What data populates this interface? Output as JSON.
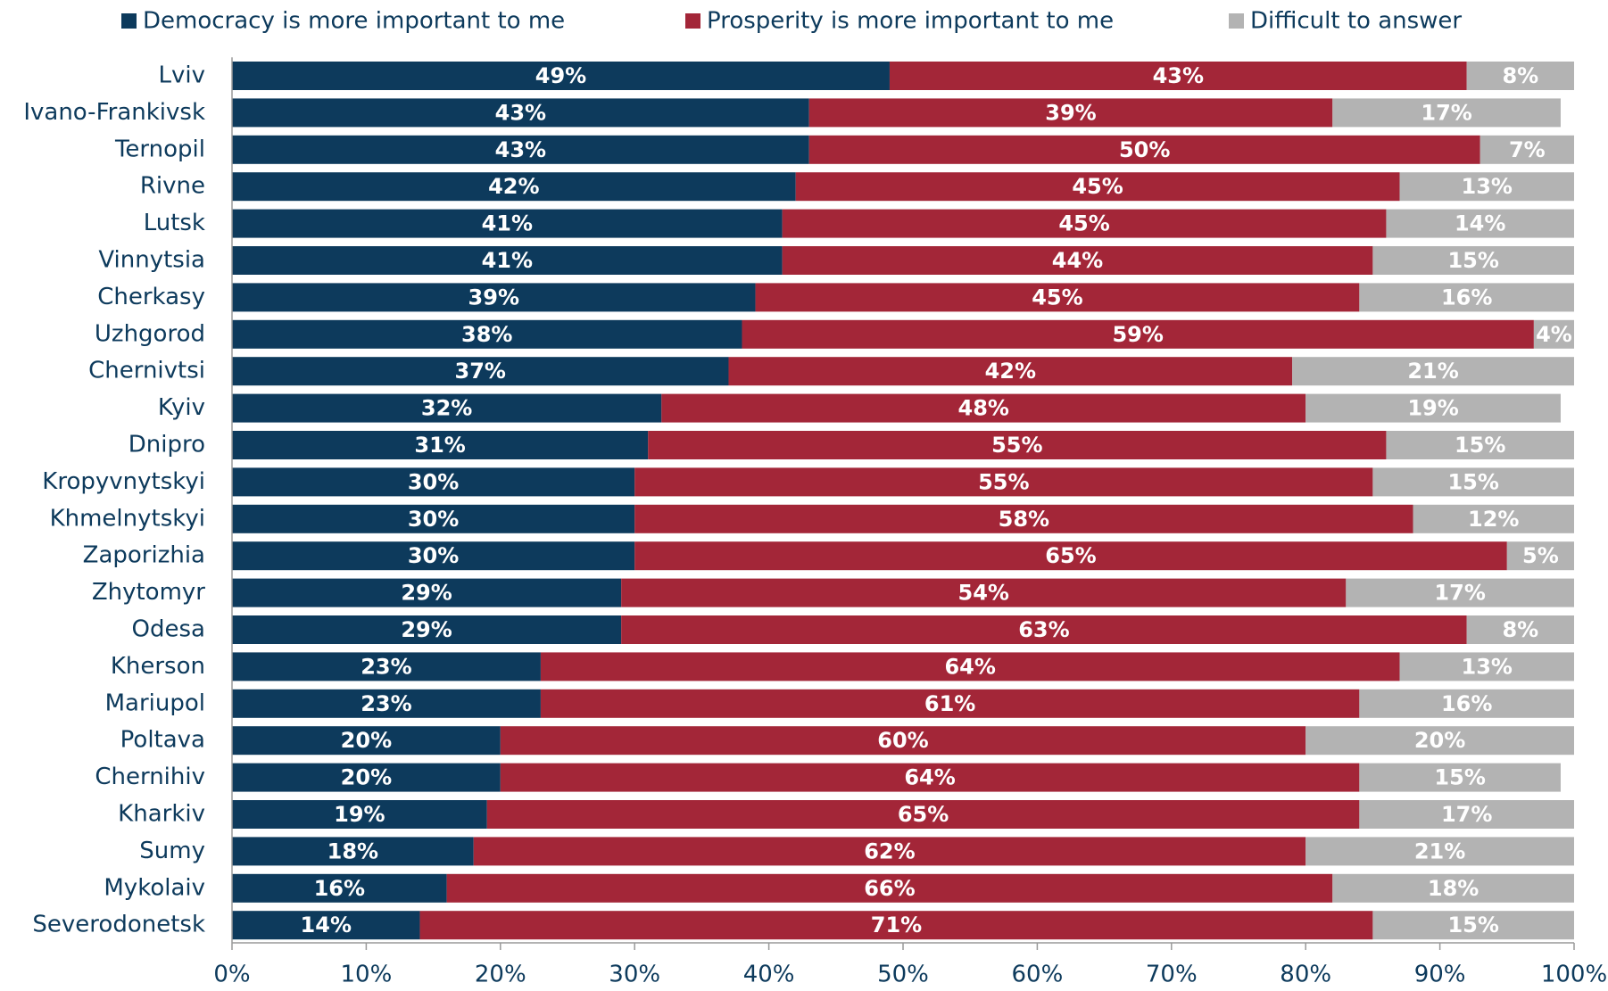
{
  "chart_data": {
    "type": "stacked-bar-horizontal",
    "categories": [
      "Lviv",
      "Ivano-Frankivsk",
      "Ternopil",
      "Rivne",
      "Lutsk",
      "Vinnytsia",
      "Cherkasy",
      "Uzhgorod",
      "Chernivtsi",
      "Kyiv",
      "Dnipro",
      "Kropyvnytskyi",
      "Khmelnytskyi",
      "Zaporizhia",
      "Zhytomyr",
      "Odesa",
      "Kherson",
      "Mariupol",
      "Poltava",
      "Chernihiv",
      "Kharkiv",
      "Sumy",
      "Mykolaiv",
      "Severodonetsk"
    ],
    "series": [
      {
        "name": "Democracy is more important to me",
        "color": "#0d3a5c",
        "values": [
          49,
          43,
          43,
          42,
          41,
          41,
          39,
          38,
          37,
          32,
          31,
          30,
          30,
          30,
          29,
          29,
          23,
          23,
          20,
          20,
          19,
          18,
          16,
          14
        ],
        "value_labels": [
          "49%",
          "43%",
          "43%",
          "42%",
          "41%",
          "41%",
          "39%",
          "38%",
          "37%",
          "32%",
          "31%",
          "30%",
          "30%",
          "30%",
          "29%",
          "29%",
          "23%",
          "23%",
          "20%",
          "20%",
          "19%",
          "18%",
          "16%",
          "14%"
        ]
      },
      {
        "name": "Prosperity is more important to me",
        "color": "#a32638",
        "values": [
          43,
          39,
          50,
          45,
          45,
          44,
          45,
          59,
          42,
          48,
          55,
          55,
          58,
          65,
          54,
          63,
          64,
          61,
          60,
          64,
          65,
          62,
          66,
          71
        ],
        "value_labels": [
          "43%",
          "39%",
          "50%",
          "45%",
          "45%",
          "44%",
          "45%",
          "59%",
          "42%",
          "48%",
          "55%",
          "55%",
          "58%",
          "65%",
          "54%",
          "63%",
          "64%",
          "61%",
          "60%",
          "64%",
          "65%",
          "62%",
          "66%",
          "71%"
        ]
      },
      {
        "name": "Difficult to answer",
        "color": "#b3b3b3",
        "values": [
          8,
          17,
          7,
          13,
          14,
          15,
          16,
          4,
          21,
          19,
          15,
          15,
          12,
          5,
          17,
          8,
          13,
          16,
          20,
          15,
          17,
          21,
          18,
          15
        ],
        "value_labels": [
          "8%",
          "17%",
          "7%",
          "13%",
          "14%",
          "15%",
          "16%",
          "4%",
          "21%",
          "19%",
          "15%",
          "15%",
          "12%",
          "5%",
          "17%",
          "8%",
          "13%",
          "16%",
          "20%",
          "15%",
          "17%",
          "21%",
          "18%",
          "15%"
        ]
      }
    ],
    "xlim": [
      0,
      100
    ],
    "xticks": [
      {
        "value": 0,
        "label": "0%"
      },
      {
        "value": 10,
        "label": "10%"
      },
      {
        "value": 20,
        "label": "20%"
      },
      {
        "value": 30,
        "label": "30%"
      },
      {
        "value": 40,
        "label": "40%"
      },
      {
        "value": 50,
        "label": "50%"
      },
      {
        "value": 60,
        "label": "60%"
      },
      {
        "value": 70,
        "label": "70%"
      },
      {
        "value": 80,
        "label": "80%"
      },
      {
        "value": 90,
        "label": "90%"
      },
      {
        "value": 100,
        "label": "100%"
      }
    ],
    "legend": "top"
  }
}
